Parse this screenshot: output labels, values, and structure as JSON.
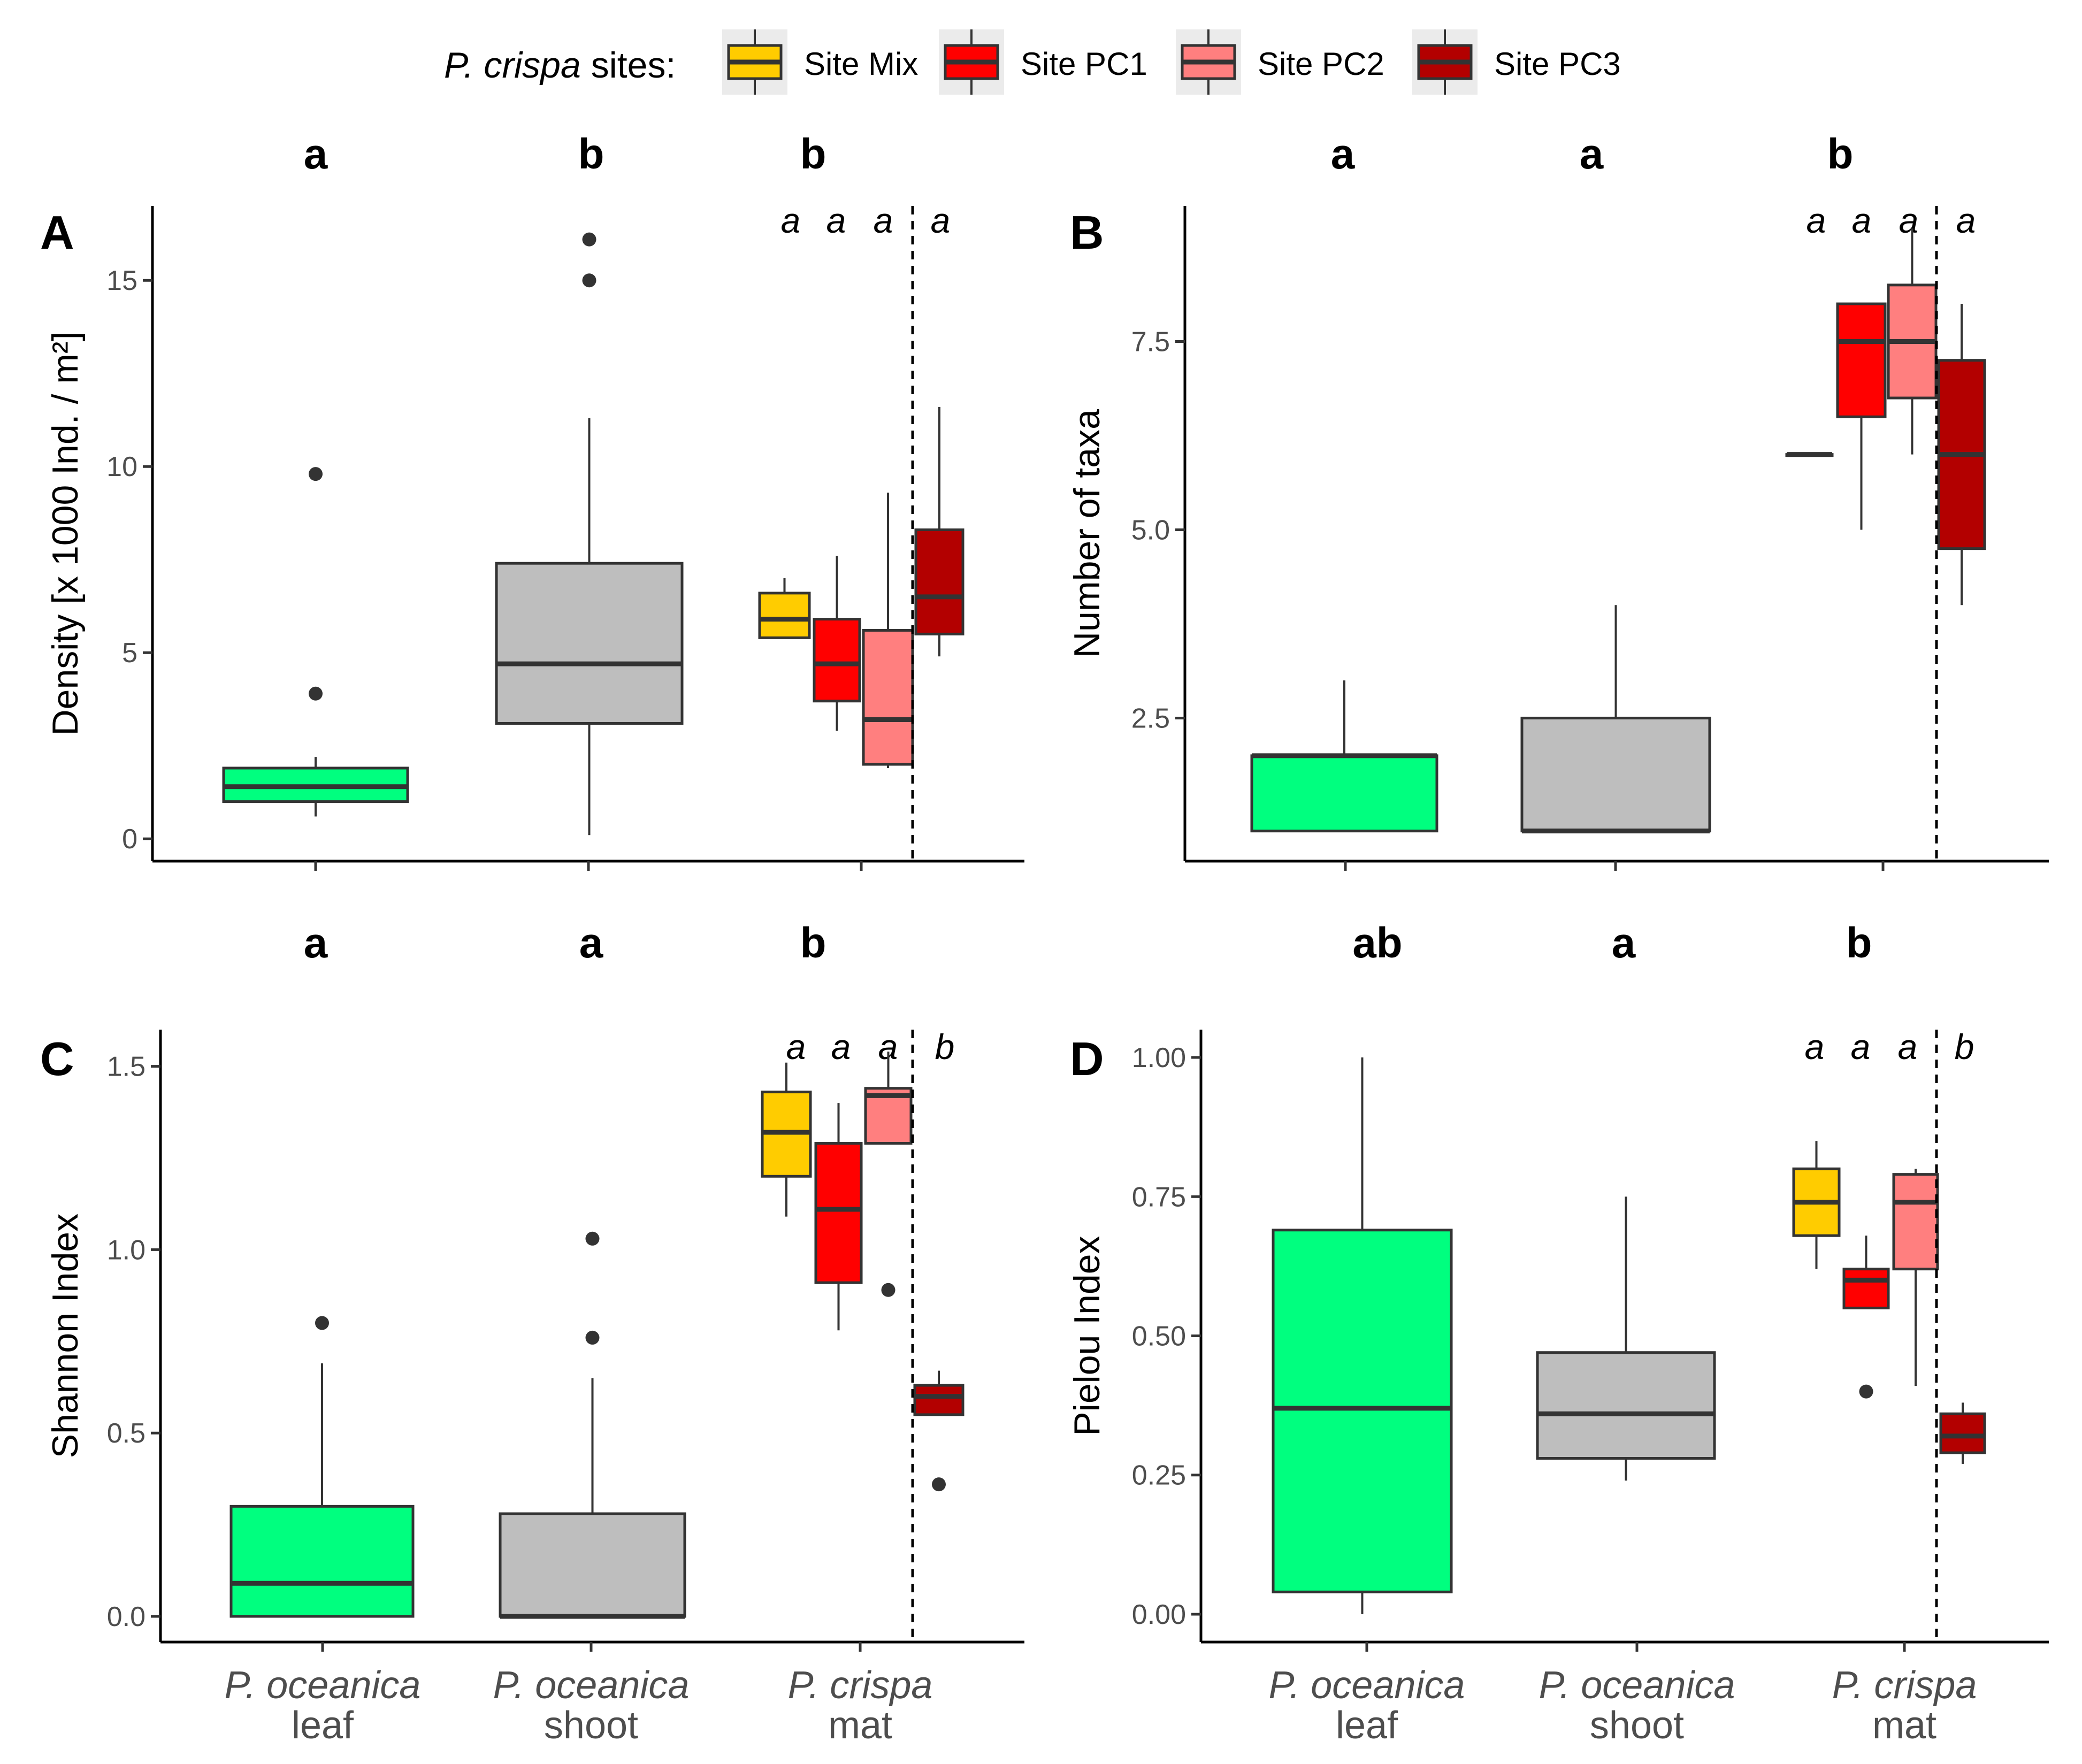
{
  "legend": {
    "title_italic": "P. crispa",
    "title_rest": " sites:",
    "items": [
      {
        "label": "Site Mix",
        "color": "#FFCC00"
      },
      {
        "label": "Site PC1",
        "color": "#FF0000"
      },
      {
        "label": "Site PC2",
        "color": "#FF7F7F"
      },
      {
        "label": "Site PC3",
        "color": "#B30000"
      }
    ]
  },
  "colors": {
    "leaf": "#00FF7F",
    "shoot": "#BEBEBE",
    "box_line": "#333333"
  },
  "categories": [
    {
      "line1": "P. oceanica",
      "line2": "leaf"
    },
    {
      "line1": "P. oceanica",
      "line2": "shoot"
    },
    {
      "line1": "P. crispa",
      "line2": "mat"
    }
  ],
  "chart_data": [
    {
      "panel": "A",
      "type": "box",
      "ylabel": "Density [x 1000 Ind. / m²]",
      "ylim": [
        -0.6,
        17
      ],
      "yticks": [
        0,
        5,
        10,
        15
      ],
      "tick_labels": [
        "0",
        "5",
        "10",
        "15"
      ],
      "group_letters": [
        "a",
        "b",
        "b"
      ],
      "site_letters": [
        "a",
        "a",
        "a",
        "a"
      ],
      "boxes": [
        {
          "group": "leaf",
          "min": 0.6,
          "q1": 1.0,
          "median": 1.4,
          "q3": 1.9,
          "max": 2.2,
          "outliers": [
            3.9,
            9.8
          ]
        },
        {
          "group": "shoot",
          "min": 0.1,
          "q1": 3.1,
          "median": 4.7,
          "q3": 7.4,
          "max": 11.3,
          "outliers": [
            15.0,
            16.1
          ]
        },
        {
          "group": "Site Mix",
          "min": 5.4,
          "q1": 5.4,
          "median": 5.9,
          "q3": 6.6,
          "max": 7.0,
          "outliers": []
        },
        {
          "group": "Site PC1",
          "min": 2.9,
          "q1": 3.7,
          "median": 4.7,
          "q3": 5.9,
          "max": 7.6,
          "outliers": []
        },
        {
          "group": "Site PC2",
          "min": 1.9,
          "q1": 2.0,
          "median": 3.2,
          "q3": 5.6,
          "max": 9.3,
          "outliers": []
        },
        {
          "group": "Site PC3",
          "min": 4.9,
          "q1": 5.5,
          "median": 6.5,
          "q3": 8.3,
          "max": 11.6,
          "outliers": []
        }
      ]
    },
    {
      "panel": "B",
      "type": "box",
      "ylabel": "Number of taxa",
      "ylim": [
        0.6,
        9.3
      ],
      "yticks": [
        2.5,
        5.0,
        7.5
      ],
      "tick_labels": [
        "2.5",
        "5.0",
        "7.5"
      ],
      "group_letters": [
        "a",
        "a",
        "b"
      ],
      "site_letters": [
        "a",
        "a",
        "a",
        "a"
      ],
      "boxes": [
        {
          "group": "leaf",
          "min": 1,
          "q1": 1,
          "median": 2,
          "q3": 2,
          "max": 3,
          "outliers": []
        },
        {
          "group": "shoot",
          "min": 1,
          "q1": 1,
          "median": 1,
          "q3": 2.5,
          "max": 4,
          "outliers": []
        },
        {
          "group": "Site Mix",
          "min": 6,
          "q1": 6,
          "median": 6,
          "q3": 6,
          "max": 6,
          "outliers": []
        },
        {
          "group": "Site PC1",
          "min": 5,
          "q1": 6.5,
          "median": 7.5,
          "q3": 8,
          "max": 8,
          "outliers": []
        },
        {
          "group": "Site PC2",
          "min": 6,
          "q1": 6.75,
          "median": 7.5,
          "q3": 8.25,
          "max": 9,
          "outliers": []
        },
        {
          "group": "Site PC3",
          "min": 4,
          "q1": 4.75,
          "median": 6,
          "q3": 7.25,
          "max": 8,
          "outliers": []
        }
      ]
    },
    {
      "panel": "C",
      "type": "box",
      "ylabel": "Shannon Index",
      "ylim": [
        -0.07,
        1.6
      ],
      "yticks": [
        0.0,
        0.5,
        1.0,
        1.5
      ],
      "tick_labels": [
        "0.0",
        "0.5",
        "1.0",
        "1.5"
      ],
      "group_letters": [
        "a",
        "a",
        "b"
      ],
      "site_letters": [
        "a",
        "a",
        "a",
        "b"
      ],
      "boxes": [
        {
          "group": "leaf",
          "min": 0,
          "q1": 0,
          "median": 0.09,
          "q3": 0.3,
          "max": 0.69,
          "outliers": [
            0.8
          ]
        },
        {
          "group": "shoot",
          "min": 0,
          "q1": 0,
          "median": 0.0,
          "q3": 0.28,
          "max": 0.65,
          "outliers": [
            0.76,
            1.03
          ]
        },
        {
          "group": "Site Mix",
          "min": 1.09,
          "q1": 1.2,
          "median": 1.32,
          "q3": 1.43,
          "max": 1.51,
          "outliers": []
        },
        {
          "group": "Site PC1",
          "min": 0.78,
          "q1": 0.91,
          "median": 1.11,
          "q3": 1.29,
          "max": 1.4,
          "outliers": []
        },
        {
          "group": "Site PC2",
          "min": 1.29,
          "q1": 1.29,
          "median": 1.42,
          "q3": 1.44,
          "max": 1.54,
          "outliers": [
            0.89
          ]
        },
        {
          "group": "Site PC3",
          "min": 0.55,
          "q1": 0.55,
          "median": 0.6,
          "q3": 0.63,
          "max": 0.67,
          "outliers": [
            0.36
          ]
        }
      ]
    },
    {
      "panel": "D",
      "type": "box",
      "ylabel": "Pielou Index",
      "ylim": [
        -0.05,
        1.05
      ],
      "yticks": [
        0.0,
        0.25,
        0.5,
        0.75,
        1.0
      ],
      "tick_labels": [
        "0.00",
        "0.25",
        "0.50",
        "0.75",
        "1.00"
      ],
      "group_letters": [
        "ab",
        "a",
        "b"
      ],
      "site_letters": [
        "a",
        "a",
        "a",
        "b"
      ],
      "boxes": [
        {
          "group": "leaf",
          "min": 0,
          "q1": 0.04,
          "median": 0.37,
          "q3": 0.69,
          "max": 1.0,
          "outliers": []
        },
        {
          "group": "shoot",
          "min": 0.24,
          "q1": 0.28,
          "median": 0.36,
          "q3": 0.47,
          "max": 0.75,
          "outliers": []
        },
        {
          "group": "Site Mix",
          "min": 0.62,
          "q1": 0.68,
          "median": 0.74,
          "q3": 0.8,
          "max": 0.85,
          "outliers": []
        },
        {
          "group": "Site PC1",
          "min": 0.55,
          "q1": 0.55,
          "median": 0.6,
          "q3": 0.62,
          "max": 0.68,
          "outliers": [
            0.4
          ]
        },
        {
          "group": "Site PC2",
          "min": 0.41,
          "q1": 0.62,
          "median": 0.74,
          "q3": 0.79,
          "max": 0.8,
          "outliers": []
        },
        {
          "group": "Site PC3",
          "min": 0.27,
          "q1": 0.29,
          "median": 0.32,
          "q3": 0.36,
          "max": 0.38,
          "outliers": []
        }
      ]
    }
  ]
}
